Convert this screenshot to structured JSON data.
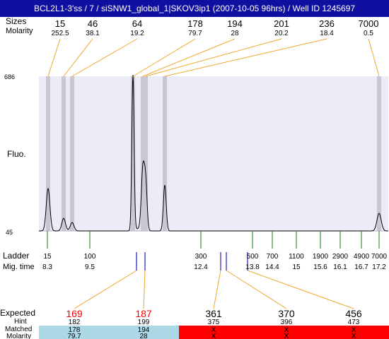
{
  "title": "BCL2L1-3'ss / 7 / siSNW1_global_1|SKOV3ip1 (2007-10-05 96hrs) / Well ID 1245697",
  "row_labels": {
    "size": "Sizes",
    "molarity": "Molarity",
    "ladder": "Ladder",
    "mig_time": "Mig. time",
    "expected": "Expected",
    "hint": "Hint",
    "matched": "Matched",
    "bottom_molarity": "Molarity"
  },
  "colors": {
    "title_bg": "#1010a0",
    "plot_bg": "#ececf8",
    "peak_band": "#c8c8d4",
    "ladder_tick": "#1a7a1a",
    "marker_tick": "#1a1acc",
    "connector": "#f0a830",
    "expected_missing": "#ff0000",
    "matched_ok": "#add8e6",
    "matched_missing": "#ff0000"
  },
  "chart_data": {
    "type": "line",
    "title": "",
    "ylabel": "Fluo.",
    "ylim": [
      45,
      686
    ],
    "y_ticks": [
      "686",
      "45"
    ],
    "top_peaks": [
      {
        "size": "15",
        "molarity": "252.5"
      },
      {
        "size": "46",
        "molarity": "38.1"
      },
      {
        "size": "64",
        "molarity": "19.2"
      },
      {
        "size": "178",
        "molarity": "79.7"
      },
      {
        "size": "194",
        "molarity": "28"
      },
      {
        "size": "201",
        "molarity": "20.2"
      },
      {
        "size": "236",
        "molarity": "18.4"
      },
      {
        "size": "7000",
        "molarity": "0.5"
      }
    ],
    "ladder": [
      {
        "size": "15",
        "mig_time": "8.3"
      },
      {
        "size": "100",
        "mig_time": "9.5"
      },
      {
        "size": "300",
        "mig_time": "12.4"
      },
      {
        "size": "500",
        "mig_time": "13.8"
      },
      {
        "size": "700",
        "mig_time": "14.4"
      },
      {
        "size": "1100",
        "mig_time": "15"
      },
      {
        "size": "1900",
        "mig_time": "15.6"
      },
      {
        "size": "2900",
        "mig_time": "16.1"
      },
      {
        "size": "4900",
        "mig_time": "16.7"
      },
      {
        "size": "7000",
        "mig_time": "17.2"
      }
    ],
    "expected": [
      {
        "expected": "169",
        "hint": "182",
        "matched": "178",
        "molarity": "79.7",
        "found": true
      },
      {
        "expected": "187",
        "hint": "199",
        "matched": "194",
        "molarity": "28",
        "found": true
      },
      {
        "expected": "361",
        "hint": "375",
        "matched": "X",
        "molarity": "X",
        "found": false
      },
      {
        "expected": "370",
        "hint": "396",
        "matched": "X",
        "molarity": "X",
        "found": false
      },
      {
        "expected": "456",
        "hint": "473",
        "matched": "X",
        "molarity": "X",
        "found": false
      }
    ]
  }
}
